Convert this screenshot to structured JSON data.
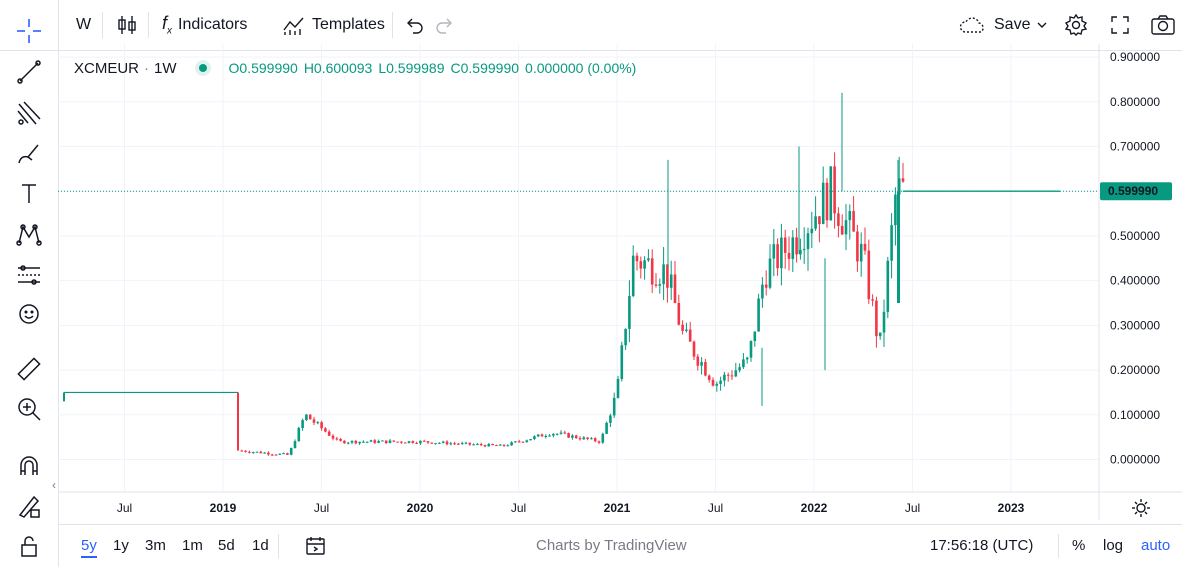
{
  "toolbar": {
    "interval": "W",
    "indicators_label": "Indicators",
    "templates_label": "Templates",
    "save_label": "Save"
  },
  "legend": {
    "symbol": "XCMEUR",
    "dot_sep": "·",
    "interval": "1W",
    "open": "O0.599990",
    "high": "H0.600093",
    "low": "L0.599989",
    "close": "C0.599990",
    "change": "0.000000 (0.00%)"
  },
  "price_axis": {
    "labels": [
      "0.900000",
      "0.800000",
      "0.700000",
      "0.600000",
      "0.500000",
      "0.400000",
      "0.300000",
      "0.200000",
      "0.100000",
      "0.000000"
    ],
    "last_price": "0.599990",
    "last_price_color": "#089981"
  },
  "time_axis": {
    "labels": [
      {
        "text": "Jul",
        "bold": false
      },
      {
        "text": "2019",
        "bold": true
      },
      {
        "text": "Jul",
        "bold": false
      },
      {
        "text": "2020",
        "bold": true
      },
      {
        "text": "Jul",
        "bold": false
      },
      {
        "text": "2021",
        "bold": true
      },
      {
        "text": "Jul",
        "bold": false
      },
      {
        "text": "2022",
        "bold": true
      },
      {
        "text": "Jul",
        "bold": false
      },
      {
        "text": "2023",
        "bold": true
      }
    ]
  },
  "bottom": {
    "ranges": [
      "5y",
      "1y",
      "3m",
      "1m",
      "5d",
      "1d"
    ],
    "active_range": "5y",
    "branding": "Charts by TradingView",
    "clock": "17:56:18 (UTC)",
    "percent": "%",
    "log": "log",
    "auto": "auto"
  },
  "colors": {
    "up": "#089981",
    "down": "#f23645",
    "accent": "#2962ff"
  },
  "chart_data": {
    "type": "candlestick",
    "symbol": "XCMEUR",
    "interval": "1W",
    "ylim": [
      -0.03,
      0.92
    ],
    "x_ticks": [
      "Jul",
      "2019",
      "Jul",
      "2020",
      "Jul",
      "2021",
      "Jul",
      "2022",
      "Jul",
      "2023"
    ],
    "y_ticks": [
      0.0,
      0.1,
      0.2,
      0.3,
      0.4,
      0.5,
      0.6,
      0.7,
      0.8,
      0.9
    ],
    "last_price": 0.59999,
    "approx_series": [
      {
        "date": "2018-04",
        "close": 0.15
      },
      {
        "date": "2019-01",
        "close": 0.15
      },
      {
        "date": "2019-02",
        "close": 0.02
      },
      {
        "date": "2019-05",
        "close": 0.01
      },
      {
        "date": "2019-06",
        "close": 0.1
      },
      {
        "date": "2019-08",
        "close": 0.04
      },
      {
        "date": "2020-01",
        "close": 0.04
      },
      {
        "date": "2020-06",
        "close": 0.03
      },
      {
        "date": "2020-09",
        "close": 0.06
      },
      {
        "date": "2020-12",
        "close": 0.04
      },
      {
        "date": "2021-01",
        "close": 0.15
      },
      {
        "date": "2021-02",
        "close": 0.45
      },
      {
        "date": "2021-04",
        "close": 0.42
      },
      {
        "date": "2021-05",
        "close": 0.28
      },
      {
        "date": "2021-07",
        "close": 0.17
      },
      {
        "date": "2021-09",
        "close": 0.22
      },
      {
        "date": "2021-10",
        "close": 0.42
      },
      {
        "date": "2021-12",
        "close": 0.5
      },
      {
        "date": "2022-02",
        "close": 0.6
      },
      {
        "date": "2022-04",
        "close": 0.45
      },
      {
        "date": "2022-05",
        "close": 0.25
      },
      {
        "date": "2022-06",
        "close": 0.6
      },
      {
        "date": "2023-02",
        "close": 0.6
      }
    ]
  }
}
